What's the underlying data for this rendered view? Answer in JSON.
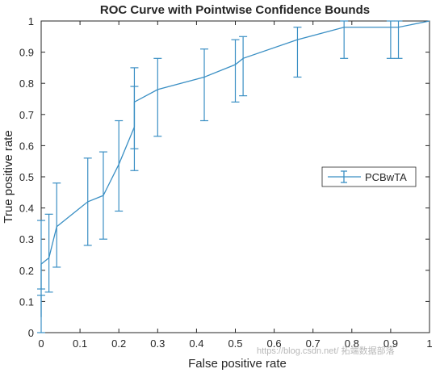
{
  "colors": {
    "series": "#3a8fc4",
    "axis": "#262626",
    "background": "#ffffff"
  },
  "watermark": "https://blog.csdn.net/  拓端数据部落",
  "chart_data": {
    "type": "line",
    "title": "ROC Curve with Pointwise Confidence Bounds",
    "xlabel": "False positive rate",
    "ylabel": "True positive rate",
    "xlim": [
      0,
      1
    ],
    "ylim": [
      0,
      1
    ],
    "xticks": [
      "0",
      "0.1",
      "0.2",
      "0.3",
      "0.4",
      "0.5",
      "0.6",
      "0.7",
      "0.8",
      "0.9",
      "1"
    ],
    "yticks": [
      "0",
      "0.1",
      "0.2",
      "0.3",
      "0.4",
      "0.5",
      "0.6",
      "0.7",
      "0.8",
      "0.9",
      "1"
    ],
    "grid": false,
    "legend_position": "right",
    "series": [
      {
        "name": "PCBwTA",
        "points": [
          {
            "x": 0.0,
            "y": 0.05,
            "lo": 0.0,
            "hi": 0.12
          },
          {
            "x": 0.0,
            "y": 0.22,
            "lo": 0.14,
            "hi": 0.36
          },
          {
            "x": 0.02,
            "y": 0.24,
            "lo": 0.13,
            "hi": 0.38
          },
          {
            "x": 0.04,
            "y": 0.34,
            "lo": 0.21,
            "hi": 0.48
          },
          {
            "x": 0.12,
            "y": 0.42,
            "lo": 0.28,
            "hi": 0.56
          },
          {
            "x": 0.16,
            "y": 0.44,
            "lo": 0.3,
            "hi": 0.58
          },
          {
            "x": 0.2,
            "y": 0.54,
            "lo": 0.39,
            "hi": 0.68
          },
          {
            "x": 0.24,
            "y": 0.66,
            "lo": 0.52,
            "hi": 0.79
          },
          {
            "x": 0.24,
            "y": 0.74,
            "lo": 0.59,
            "hi": 0.85
          },
          {
            "x": 0.3,
            "y": 0.78,
            "lo": 0.63,
            "hi": 0.88
          },
          {
            "x": 0.42,
            "y": 0.82,
            "lo": 0.68,
            "hi": 0.91
          },
          {
            "x": 0.5,
            "y": 0.86,
            "lo": 0.74,
            "hi": 0.94
          },
          {
            "x": 0.52,
            "y": 0.88,
            "lo": 0.76,
            "hi": 0.95
          },
          {
            "x": 0.66,
            "y": 0.94,
            "lo": 0.82,
            "hi": 0.98
          },
          {
            "x": 0.78,
            "y": 0.98,
            "lo": 0.88,
            "hi": 1.0
          },
          {
            "x": 0.9,
            "y": 0.98,
            "lo": 0.88,
            "hi": 1.0
          },
          {
            "x": 0.92,
            "y": 0.98,
            "lo": 0.88,
            "hi": 1.0
          },
          {
            "x": 1.0,
            "y": 1.0
          }
        ]
      }
    ]
  }
}
